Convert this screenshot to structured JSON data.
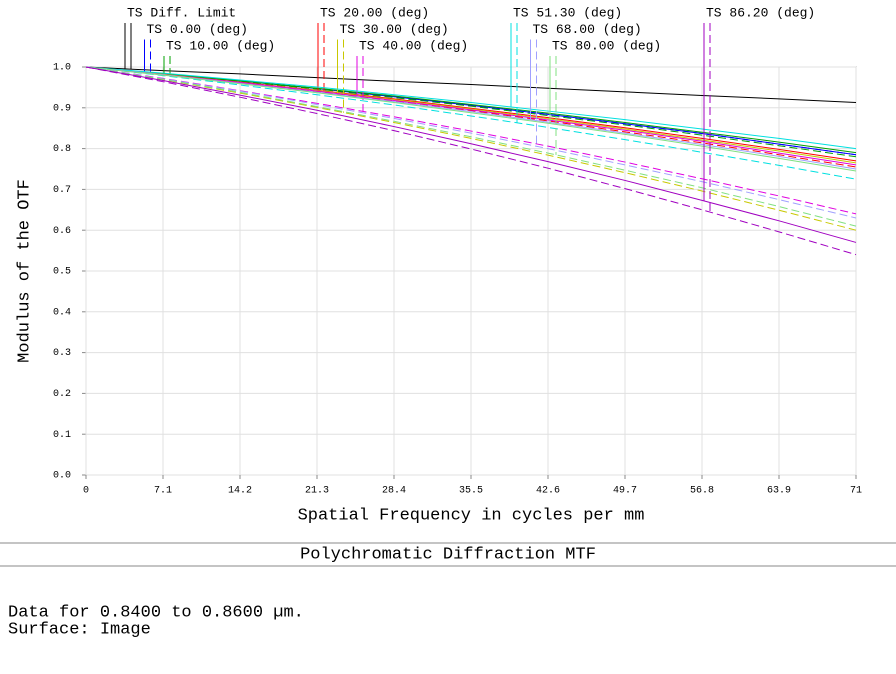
{
  "chart_data": {
    "type": "line",
    "title": "Polychromatic Diffraction MTF",
    "x_label": "Spatial Frequency in cycles per mm",
    "y_label": "Modulus of the OTF",
    "notes": [
      "Data for 0.8400 to 0.8600 µm.",
      "Surface: Image"
    ],
    "x": [
      0,
      7.1,
      14.2,
      21.3,
      28.4,
      35.5,
      42.6,
      49.7,
      56.8,
      63.9,
      71
    ],
    "xlim": [
      0,
      71
    ],
    "xticks": [
      0,
      7.1,
      14.2,
      21.3,
      28.4,
      35.5,
      42.6,
      49.7,
      56.8,
      63.9,
      71
    ],
    "ylim": [
      0,
      1
    ],
    "yticks": [
      {
        "value": 0,
        "label": "0.0"
      },
      0.1,
      0.2,
      0.3,
      0.4,
      0.5,
      0.6,
      0.7,
      0.8,
      0.9,
      {
        "value": 1,
        "label": "1.0"
      }
    ],
    "grid": true,
    "series": [
      {
        "name": "TS Diff. Limit",
        "color": "#000000",
        "values": [
          1,
          0.991,
          0.983,
          0.974,
          0.965,
          0.957,
          0.948,
          0.939,
          0.93,
          0.922,
          0.913
        ]
      },
      {
        "name": "TS 0.00 (deg)",
        "color": "#0000ff",
        "values": [
          1,
          0.983,
          0.966,
          0.947,
          0.927,
          0.906,
          0.884,
          0.861,
          0.837,
          0.811,
          0.785
        ],
        "sagittal": [
          1,
          0.983,
          0.966,
          0.947,
          0.927,
          0.906,
          0.884,
          0.861,
          0.837,
          0.811,
          0.785
        ]
      },
      {
        "name": "TS 10.00 (deg)",
        "color": "#00a000",
        "values": [
          1,
          0.984,
          0.966,
          0.948,
          0.929,
          0.908,
          0.887,
          0.864,
          0.84,
          0.816,
          0.79
        ],
        "sagittal": [
          1,
          0.983,
          0.965,
          0.946,
          0.925,
          0.904,
          0.881,
          0.858,
          0.833,
          0.807,
          0.78
        ]
      },
      {
        "name": "TS 20.00 (deg)",
        "color": "#ff0000",
        "values": [
          1,
          0.982,
          0.963,
          0.943,
          0.922,
          0.899,
          0.876,
          0.851,
          0.825,
          0.798,
          0.77
        ],
        "sagittal": [
          1,
          0.981,
          0.961,
          0.939,
          0.917,
          0.893,
          0.868,
          0.841,
          0.814,
          0.785,
          0.755
        ]
      },
      {
        "name": "TS 30.00 (deg)",
        "color": "#c8c800",
        "values": [
          1,
          0.982,
          0.962,
          0.942,
          0.92,
          0.897,
          0.873,
          0.848,
          0.821,
          0.794,
          0.765
        ],
        "sagittal": [
          1,
          0.969,
          0.936,
          0.901,
          0.864,
          0.825,
          0.784,
          0.741,
          0.696,
          0.649,
          0.6
        ]
      },
      {
        "name": "TS 40.00 (deg)",
        "color": "#e000e0",
        "values": [
          1,
          0.981,
          0.962,
          0.941,
          0.918,
          0.895,
          0.87,
          0.845,
          0.818,
          0.789,
          0.76
        ],
        "sagittal": [
          1,
          0.972,
          0.942,
          0.911,
          0.878,
          0.843,
          0.806,
          0.767,
          0.726,
          0.684,
          0.64
        ]
      },
      {
        "name": "TS 51.30 (deg)",
        "color": "#00e0e0",
        "values": [
          1,
          0.985,
          0.968,
          0.951,
          0.932,
          0.913,
          0.892,
          0.871,
          0.848,
          0.825,
          0.8
        ],
        "sagittal": [
          1,
          0.979,
          0.956,
          0.932,
          0.907,
          0.88,
          0.852,
          0.822,
          0.791,
          0.759,
          0.725
        ]
      },
      {
        "name": "TS 68.00 (deg)",
        "color": "#a0a0ff",
        "values": [
          1,
          0.981,
          0.96,
          0.938,
          0.915,
          0.891,
          0.865,
          0.838,
          0.81,
          0.781,
          0.75
        ],
        "sagittal": [
          1,
          0.971,
          0.941,
          0.908,
          0.874,
          0.838,
          0.8,
          0.76,
          0.719,
          0.675,
          0.63
        ]
      },
      {
        "name": "TS 80.00 (deg)",
        "color": "#80e080",
        "values": [
          1,
          0.98,
          0.959,
          0.937,
          0.913,
          0.888,
          0.862,
          0.835,
          0.806,
          0.776,
          0.745
        ],
        "sagittal": [
          1,
          0.97,
          0.938,
          0.903,
          0.867,
          0.829,
          0.789,
          0.747,
          0.704,
          0.658,
          0.61
        ]
      },
      {
        "name": "TS 86.20 (deg)",
        "color": "#a000c0",
        "values": [
          1,
          0.967,
          0.931,
          0.894,
          0.854,
          0.812,
          0.768,
          0.722,
          0.673,
          0.623,
          0.57
        ],
        "sagittal": [
          1,
          0.964,
          0.926,
          0.886,
          0.844,
          0.799,
          0.752,
          0.702,
          0.65,
          0.596,
          0.54
        ]
      }
    ]
  }
}
